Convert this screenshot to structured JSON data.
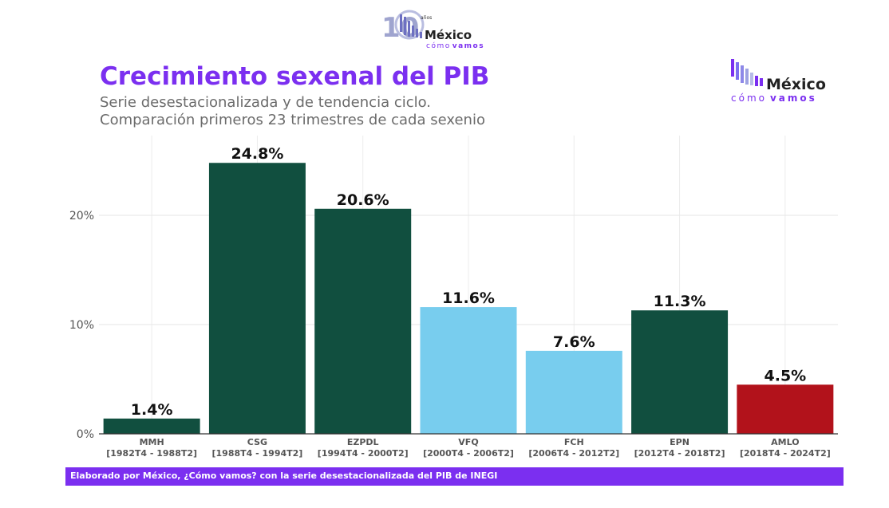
{
  "logo_top": {
    "years_number": "10",
    "years_word": "años",
    "brand_main": "México",
    "brand_sub_1": "cómo",
    "brand_sub_2": "vamos"
  },
  "logo_right": {
    "brand_main": "México",
    "brand_sub_1": "cómo",
    "brand_sub_2": "vamos"
  },
  "colors": {
    "brand_purple": "#7b2ff0",
    "dark_green": "#114f3f",
    "light_blue": "#78cdee",
    "red": "#b2121b",
    "subtitle_grey": "#6b6b6b"
  },
  "footer": {
    "text": "Elaborado por México, ¿Cómo vamos? con la serie desestacionalizada del PIB de INEGI"
  },
  "chart_data": {
    "type": "bar",
    "title": "Crecimiento sexenal del PIB",
    "subtitle_lines": [
      "Serie desestacionalizada y de tendencia ciclo.",
      "Comparación primeros 23 trimestres de cada sexenio"
    ],
    "xlabel": "",
    "ylabel": "",
    "ylim": [
      0,
      27
    ],
    "y_ticks": [
      0,
      10,
      20
    ],
    "y_tick_labels": [
      "0%",
      "10%",
      "20%"
    ],
    "grid": true,
    "legend": "none",
    "categories": [
      {
        "name": "MMH",
        "period": "[1982T4 - 1988T2]"
      },
      {
        "name": "CSG",
        "period": "[1988T4 - 1994T2]"
      },
      {
        "name": "EZPDL",
        "period": "[1994T4 - 2000T2]"
      },
      {
        "name": "VFQ",
        "period": "[2000T4 - 2006T2]"
      },
      {
        "name": "FCH",
        "period": "[2006T4 - 2012T2]"
      },
      {
        "name": "EPN",
        "period": "[2012T4 - 2018T2]"
      },
      {
        "name": "AMLO",
        "period": "[2018T4 - 2024T2]"
      }
    ],
    "values": [
      1.4,
      24.8,
      20.6,
      11.6,
      7.6,
      11.3,
      4.5
    ],
    "value_labels": [
      "1.4%",
      "24.8%",
      "20.6%",
      "11.6%",
      "7.6%",
      "11.3%",
      "4.5%"
    ],
    "bar_colors": [
      "#114f3f",
      "#114f3f",
      "#114f3f",
      "#78cdee",
      "#78cdee",
      "#114f3f",
      "#b2121b"
    ]
  }
}
